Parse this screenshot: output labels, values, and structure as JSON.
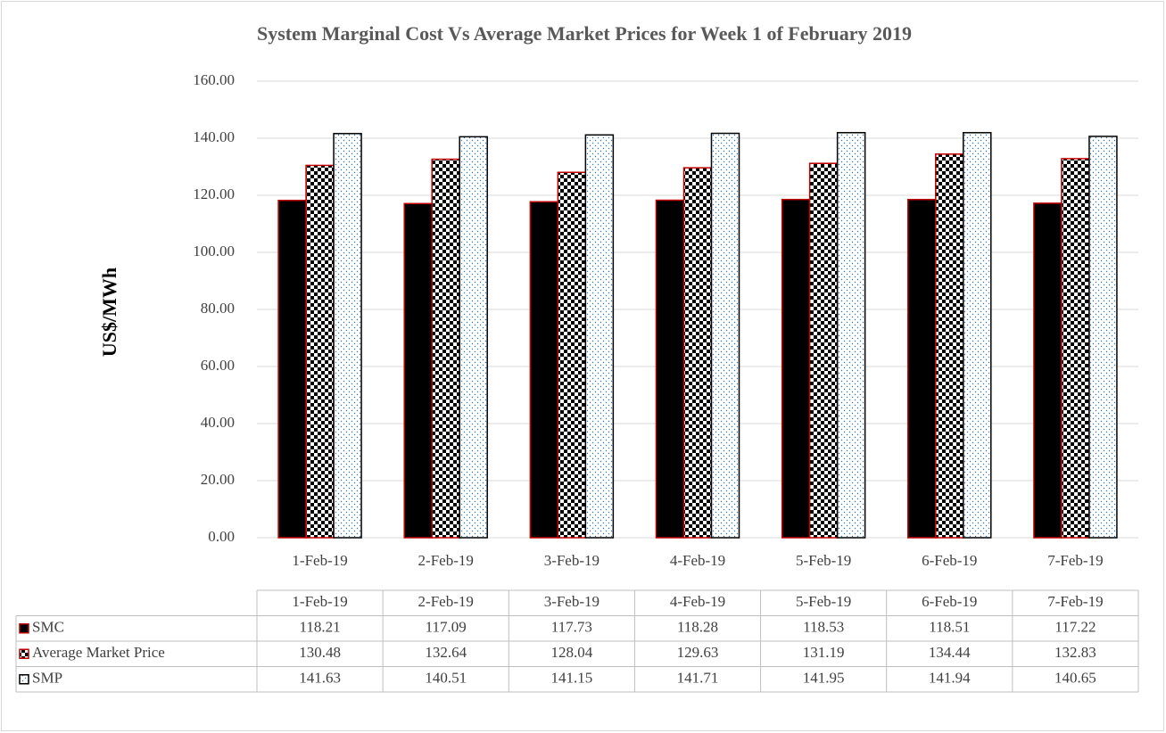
{
  "chart_data": {
    "type": "bar",
    "title": "System Marginal Cost Vs Average Market Prices for Week 1 of February 2019",
    "y_label": "US$/MWh",
    "categories": [
      "1-Feb-19",
      "2-Feb-19",
      "3-Feb-19",
      "4-Feb-19",
      "5-Feb-19",
      "6-Feb-19",
      "7-Feb-19"
    ],
    "series": [
      {
        "name": "SMC",
        "color": "#000000",
        "edgecolor": "#c00000",
        "pattern": "solid",
        "values": [
          118.21,
          117.09,
          117.73,
          118.28,
          118.53,
          118.51,
          117.22
        ]
      },
      {
        "name": "Average Market Price",
        "color": "#000000",
        "edgecolor": "#c00000",
        "pattern": "checker",
        "values": [
          130.48,
          132.64,
          128.04,
          129.63,
          131.19,
          134.44,
          132.83
        ]
      },
      {
        "name": "SMP",
        "color": "#2e75b6",
        "edgecolor": "#000000",
        "pattern": "dots",
        "values": [
          141.63,
          140.51,
          141.15,
          141.71,
          141.95,
          141.94,
          140.65
        ]
      }
    ],
    "ylim": [
      0,
      160
    ],
    "yticks": [
      {
        "value": 0,
        "label": "0.00"
      },
      {
        "value": 20,
        "label": "20.00"
      },
      {
        "value": 40,
        "label": "40.00"
      },
      {
        "value": 60,
        "label": "60.00"
      },
      {
        "value": 80,
        "label": "80.00"
      },
      {
        "value": 100,
        "label": "100.00"
      },
      {
        "value": 120,
        "label": "120.00"
      },
      {
        "value": 140,
        "label": "140.00"
      },
      {
        "value": 160,
        "label": "160.00"
      }
    ],
    "grid": true,
    "data_table": true
  }
}
